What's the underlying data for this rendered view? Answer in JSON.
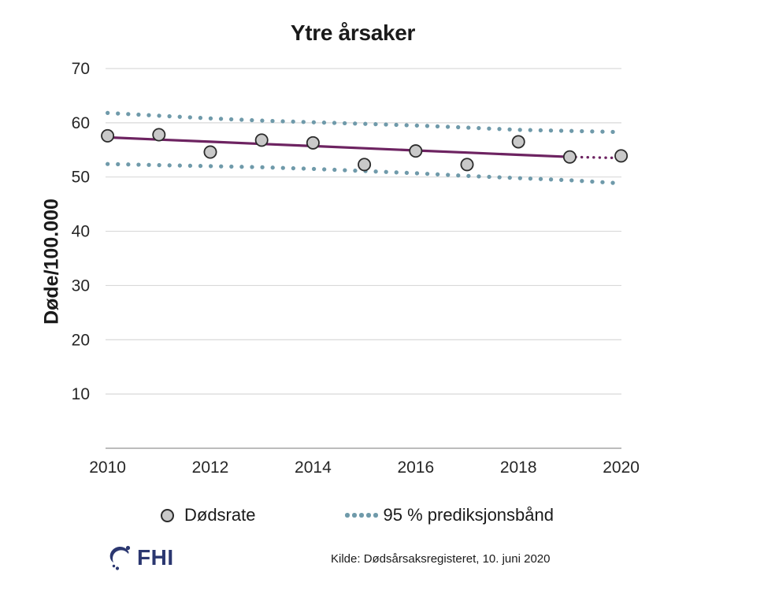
{
  "title": "Ytre årsaker",
  "y_axis_title": "Døde/100.000",
  "legend": {
    "dodsrate_label": "Dødsrate",
    "band_label": "95 % prediksjonsbånd"
  },
  "footer": {
    "logo_text": "FHI",
    "source": "Kilde: Dødsårsaksregisteret, 10. juni 2020"
  },
  "colors": {
    "trend": "#6d2361",
    "band": "#6f9aaa",
    "point_fill": "#c9c9c9",
    "point_stroke": "#2b2b2b",
    "gridline": "#d9d9d9",
    "axis_line": "#a6a6a6",
    "tick_text": "#262626",
    "fhi_navy": "#2b3770"
  },
  "chart_data": {
    "type": "line",
    "title": "Ytre årsaker",
    "xlabel": "",
    "ylabel": "Døde/100.000",
    "x": [
      2010,
      2011,
      2012,
      2013,
      2014,
      2015,
      2016,
      2017,
      2018,
      2019,
      2020
    ],
    "xticks": [
      2010,
      2012,
      2014,
      2016,
      2018,
      2020
    ],
    "yticks": [
      10,
      20,
      30,
      40,
      50,
      60,
      70
    ],
    "ylim": [
      0,
      73
    ],
    "xlim": [
      2010,
      2020
    ],
    "grid": true,
    "legend_position": "bottom",
    "series": [
      {
        "name": "Dødsrate",
        "style": "scatter-circle",
        "values": [
          57.6,
          57.8,
          54.6,
          56.8,
          56.3,
          52.3,
          54.8,
          52.3,
          56.5,
          53.7,
          53.9
        ]
      },
      {
        "name": "Trend",
        "style": "solid-line-with-dotted-forecast",
        "solid_through_index": 9,
        "values": [
          57.3,
          56.9,
          56.5,
          56.1,
          55.7,
          55.3,
          54.9,
          54.5,
          54.1,
          53.7,
          53.5
        ]
      },
      {
        "name": "95 % prediksjonsbånd (øvre)",
        "style": "dotted-band",
        "values": [
          61.8,
          61.3,
          60.8,
          60.4,
          60.1,
          59.8,
          59.5,
          59.1,
          58.7,
          58.5,
          58.3
        ]
      },
      {
        "name": "95 % prediksjonsbånd (nedre)",
        "style": "dotted-band",
        "values": [
          52.4,
          52.2,
          52.0,
          51.8,
          51.5,
          51.1,
          50.7,
          50.2,
          49.8,
          49.4,
          48.9
        ]
      }
    ]
  }
}
